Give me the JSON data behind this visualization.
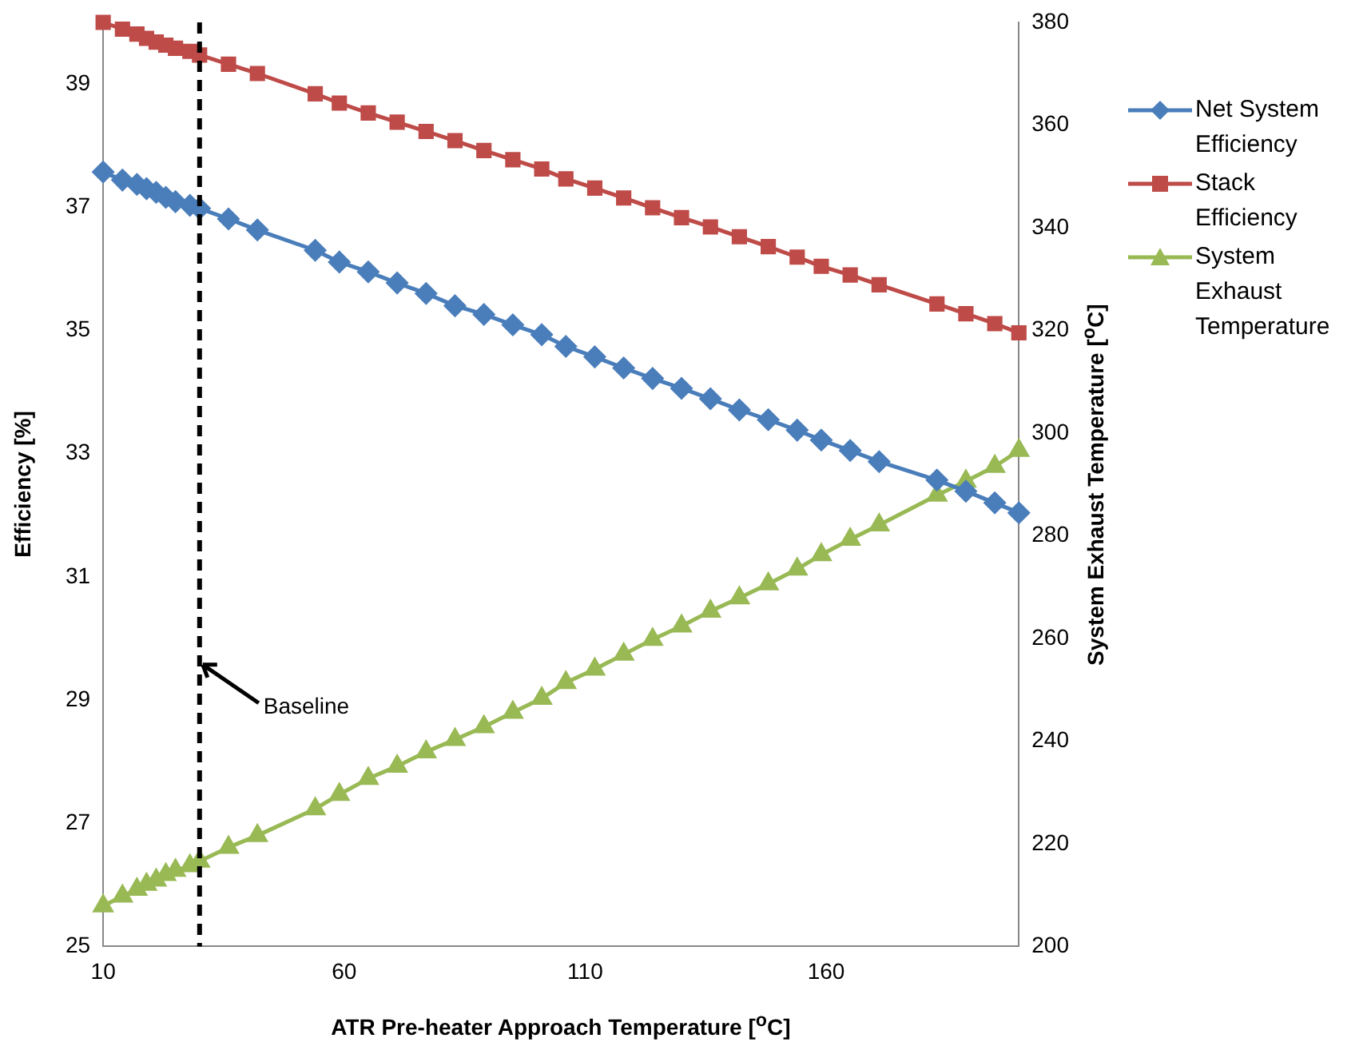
{
  "chart_data": {
    "type": "line",
    "xlabel": "ATR Pre-heater Approach Temperature [$^{o}$C]",
    "ylabel": "Efficiency [%]",
    "y2label": "System Exhaust Temperature [$^{o}$C]",
    "x": [
      10,
      14,
      17,
      19,
      21,
      23,
      25,
      28,
      30,
      36,
      42,
      54,
      59,
      65,
      71,
      77,
      83,
      89,
      95,
      101,
      106,
      112,
      118,
      124,
      130,
      136,
      142,
      148,
      154,
      159,
      165,
      171,
      183,
      189,
      195,
      200
    ],
    "series": [
      {
        "name": "Net System Efficiency",
        "color": "#4a7ebb",
        "marker": "diamond",
        "values": [
          37.57,
          37.44,
          37.37,
          37.3,
          37.24,
          37.16,
          37.09,
          37.03,
          36.98,
          36.81,
          36.63,
          36.3,
          36.11,
          35.95,
          35.77,
          35.6,
          35.4,
          35.26,
          35.09,
          34.93,
          34.74,
          34.57,
          34.39,
          34.22,
          34.06,
          33.89,
          33.71,
          33.55,
          33.38,
          33.22,
          33.05,
          32.87,
          32.57,
          32.39,
          32.2,
          32.04
        ]
      },
      {
        "name": "Stack Efficiency",
        "color": "#be4b48",
        "marker": "square",
        "values": [
          40.0,
          39.89,
          39.81,
          39.74,
          39.68,
          39.63,
          39.58,
          39.53,
          39.47,
          39.32,
          39.17,
          38.84,
          38.69,
          38.53,
          38.38,
          38.23,
          38.08,
          37.92,
          37.77,
          37.62,
          37.46,
          37.31,
          37.15,
          36.99,
          36.83,
          36.68,
          36.52,
          36.36,
          36.19,
          36.04,
          35.9,
          35.74,
          35.43,
          35.27,
          35.11,
          34.96
        ]
      },
      {
        "name": "System Exhaust Temperature",
        "color": "#98b954",
        "marker": "triangle",
        "axis": "y2",
        "values": [
          207.9,
          209.8,
          211.1,
          212.1,
          212.9,
          214.0,
          214.8,
          215.7,
          216.6,
          219.3,
          221.6,
          226.8,
          229.6,
          232.7,
          235.1,
          237.9,
          240.3,
          242.8,
          245.6,
          248.3,
          251.4,
          254.0,
          256.9,
          259.8,
          262.4,
          265.3,
          267.9,
          270.6,
          273.5,
          276.3,
          279.3,
          282.1,
          287.9,
          290.6,
          293.5,
          296.6
        ]
      }
    ],
    "xlim": [
      10,
      200
    ],
    "xticks": [
      10,
      60,
      110,
      160
    ],
    "ylim": [
      25,
      40
    ],
    "yticks": [
      25,
      27,
      29,
      31,
      33,
      35,
      37,
      39
    ],
    "y2lim": [
      200,
      380
    ],
    "y2ticks": [
      200,
      220,
      240,
      260,
      280,
      300,
      320,
      340,
      360,
      380
    ],
    "ref_lines": [
      {
        "axis": "x",
        "value": 30,
        "color": "#000000",
        "line_style": "dashed"
      }
    ],
    "annotations": [
      {
        "text": "Baseline",
        "x": 30,
        "y": 29.6
      }
    ],
    "grid": false,
    "legend": "right"
  }
}
